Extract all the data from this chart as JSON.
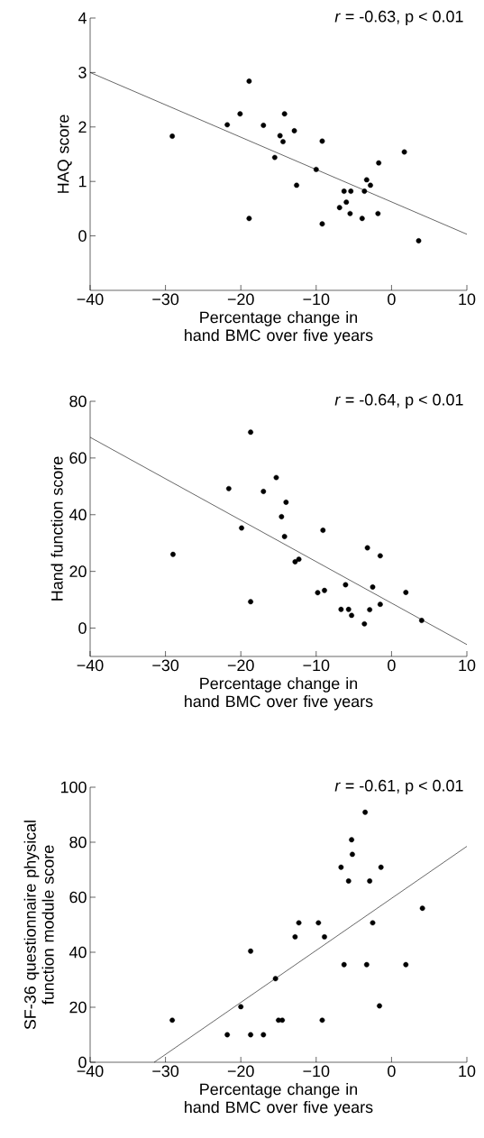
{
  "chart_data": [
    {
      "type": "scatter",
      "xlabel": "Percentage change in hand BMC over five years",
      "ylabel": "HAQ score",
      "annotations": [
        "*r* = -0.63, p < 0.01"
      ],
      "xlim": [
        -40,
        10
      ],
      "xticks": [
        {
          "value": -40,
          "label": "−40"
        },
        {
          "value": -30,
          "label": "−30"
        },
        {
          "value": -20,
          "label": "−20"
        },
        {
          "value": -10,
          "label": "−10"
        },
        0,
        10
      ],
      "ylim": [
        -1,
        4
      ],
      "yticks": [
        0,
        1,
        2,
        3,
        4
      ],
      "series": [
        {
          "type": "scatter",
          "color": "#000000",
          "marker": "circle",
          "x": [
            -29.1,
            -18.9,
            -20.1,
            -21.8,
            -17.0,
            -14.2,
            -12.9,
            -14.8,
            -14.4,
            -15.5,
            -9.2,
            -10.0,
            -12.6,
            -18.9,
            -9.2,
            1.7,
            -1.7,
            -3.3,
            -2.8,
            -3.6,
            -6.3,
            -5.4,
            -6.0,
            -6.9,
            -5.5,
            -3.9,
            -1.8,
            3.6
          ],
          "values": [
            1.83,
            2.84,
            2.24,
            2.04,
            2.03,
            2.24,
            1.93,
            1.84,
            1.73,
            1.44,
            1.74,
            1.22,
            0.93,
            0.32,
            0.22,
            1.54,
            1.34,
            1.03,
            0.93,
            0.82,
            0.82,
            0.82,
            0.62,
            0.52,
            0.41,
            0.32,
            0.41,
            -0.09
          ]
        },
        {
          "type": "line",
          "color": "#000000",
          "x": [
            -40,
            10
          ],
          "values": [
            3.0,
            0.03
          ]
        }
      ]
    },
    {
      "type": "scatter",
      "xlabel": "Percentage change in hand BMC over five years",
      "ylabel": "Hand function score",
      "annotations": [
        "*r* = -0.64, p < 0.01"
      ],
      "xlim": [
        -40,
        10
      ],
      "xticks": [
        {
          "value": -40,
          "label": "−40"
        },
        {
          "value": -30,
          "label": "−30"
        },
        {
          "value": -20,
          "label": "−20"
        },
        {
          "value": -10,
          "label": "−10"
        },
        0,
        10
      ],
      "ylim": [
        -10,
        80
      ],
      "yticks": [
        0,
        20,
        40,
        60,
        80
      ],
      "series": [
        {
          "type": "scatter",
          "color": "#000000",
          "marker": "circle",
          "x": [
            -18.7,
            -29.0,
            -21.6,
            -19.9,
            -17.0,
            -15.3,
            -14.0,
            -14.6,
            -14.2,
            -12.8,
            -12.3,
            -9.1,
            -18.7,
            -9.8,
            -8.9,
            -6.1,
            -6.7,
            -5.7,
            -5.3,
            -3.6,
            -3.2,
            -1.5,
            -2.5,
            -2.9,
            -1.5,
            1.9,
            4.0
          ],
          "values": [
            69.1,
            26.0,
            49.2,
            35.3,
            48.2,
            53.1,
            44.4,
            39.3,
            32.3,
            23.4,
            24.3,
            34.5,
            9.3,
            12.5,
            13.3,
            15.3,
            6.6,
            6.6,
            4.5,
            1.5,
            28.3,
            25.5,
            14.5,
            6.5,
            8.4,
            12.6,
            2.7
          ]
        },
        {
          "type": "line",
          "color": "#000000",
          "x": [
            -40,
            10
          ],
          "values": [
            67.3,
            -5.8
          ]
        }
      ]
    },
    {
      "type": "scatter",
      "xlabel": "Percentage change in hand BMC over five years",
      "ylabel": "SF-36 questionnaire physical function module score",
      "annotations": [
        "*r* = -0.61, p < 0.01"
      ],
      "xlim": [
        -40,
        10
      ],
      "xticks": [
        {
          "value": -40,
          "label": "−40"
        },
        {
          "value": -30,
          "label": "−30"
        },
        {
          "value": -20,
          "label": "−20"
        },
        {
          "value": -10,
          "label": "−10"
        },
        0,
        10
      ],
      "ylim": [
        0,
        100
      ],
      "yticks": [
        0,
        20,
        40,
        60,
        80,
        100
      ],
      "series": [
        {
          "type": "scatter",
          "color": "#000000",
          "marker": "circle",
          "x": [
            -3.5,
            -5.3,
            -5.2,
            -6.7,
            -1.4,
            -5.7,
            -2.9,
            4.1,
            -12.3,
            -9.7,
            -2.5,
            -12.8,
            -8.9,
            -18.7,
            -15.4,
            -6.3,
            -3.3,
            1.9,
            -20.0,
            -1.6,
            -29.1,
            -15.0,
            -14.5,
            -9.2,
            -21.8,
            -18.7,
            -17.0
          ],
          "values": [
            90.9,
            80.9,
            75.6,
            70.9,
            70.9,
            65.9,
            65.9,
            56.0,
            50.7,
            50.7,
            50.7,
            45.6,
            45.6,
            40.4,
            30.4,
            35.5,
            35.5,
            35.5,
            20.2,
            20.5,
            15.3,
            15.3,
            15.3,
            15.3,
            10,
            10,
            10
          ]
        },
        {
          "type": "line",
          "color": "#000000",
          "x": [
            -31.5,
            10
          ],
          "values": [
            0,
            78.5
          ]
        }
      ]
    }
  ]
}
